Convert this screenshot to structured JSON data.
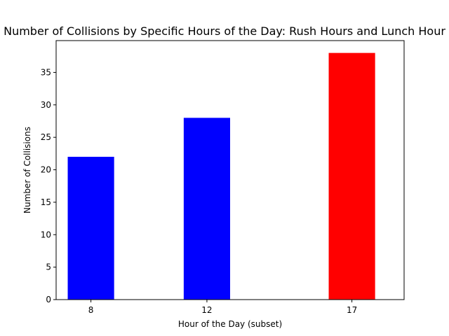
{
  "chart_data": {
    "type": "bar",
    "title": "Number of Collisions by Specific Hours of the Day: Rush Hours and Lunch Hour",
    "xlabel": "Hour of the Day (subset)",
    "ylabel": "Number of Collisions",
    "x": [
      8,
      12,
      17
    ],
    "tick_labels": [
      "8",
      "12",
      "17"
    ],
    "values": [
      22,
      28,
      38
    ],
    "bar_colors": [
      "#0000ff",
      "#0000ff",
      "#ff0000"
    ],
    "xlim": [
      6.8,
      18.8
    ],
    "ylim": [
      0,
      39.9
    ],
    "yticks": [
      0,
      5,
      10,
      15,
      20,
      25,
      30,
      35
    ],
    "bar_width": 1.6,
    "grid": false,
    "legend": "none"
  }
}
